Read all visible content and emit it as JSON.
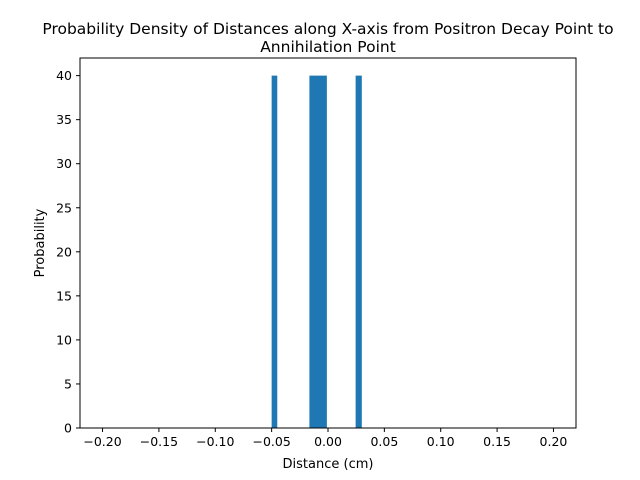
{
  "chart_data": {
    "type": "bar",
    "title_lines": [
      "Probability Density of Distances along X-axis from Positron Decay Point to",
      "Annihilation Point"
    ],
    "xlabel": "Distance (cm)",
    "ylabel": "Probability",
    "xlim": [
      -0.22,
      0.22
    ],
    "ylim": [
      0,
      42
    ],
    "x_ticks": [
      -0.2,
      -0.15,
      -0.1,
      -0.05,
      0.0,
      0.05,
      0.1,
      0.15,
      0.2
    ],
    "x_tick_labels": [
      "−0.20",
      "−0.15",
      "−0.10",
      "−0.05",
      "0.00",
      "0.05",
      "0.10",
      "0.15",
      "0.20"
    ],
    "y_ticks": [
      0,
      5,
      10,
      15,
      20,
      25,
      30,
      35,
      40
    ],
    "y_tick_labels": [
      "0",
      "5",
      "10",
      "15",
      "20",
      "25",
      "30",
      "35",
      "40"
    ],
    "bars": [
      {
        "x_start": -0.05,
        "x_end": -0.045,
        "value": 40
      },
      {
        "x_start": -0.0165,
        "x_end": -0.001,
        "value": 40
      },
      {
        "x_start": 0.0245,
        "x_end": 0.03,
        "value": 40
      }
    ],
    "bar_color": "#1f77b4",
    "grid": false,
    "legend": "none"
  }
}
